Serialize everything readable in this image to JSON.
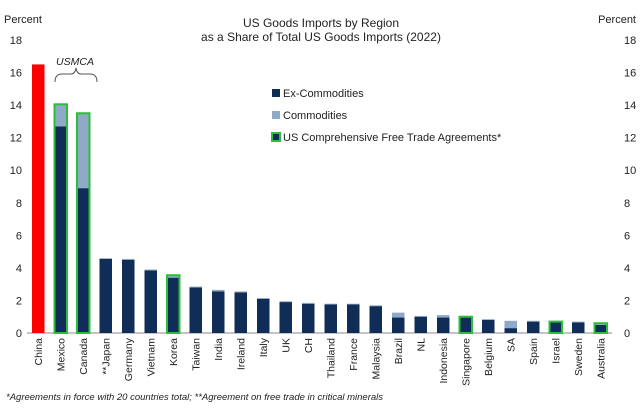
{
  "chart_data": {
    "type": "bar",
    "title": "US Goods Imports by Region",
    "subtitle": "as a Share of Total US Goods Imports (2022)",
    "ylabel_left": "Percent",
    "ylabel_right": "Percent",
    "ylim": [
      0,
      18
    ],
    "yticks": [
      0,
      2,
      4,
      6,
      8,
      10,
      12,
      14,
      16,
      18
    ],
    "grid": false,
    "categories": [
      "China",
      "Mexico",
      "Canada",
      "**Japan",
      "Germany",
      "Vietnam",
      "Korea",
      "Taiwan",
      "India",
      "Ireland",
      "Italy",
      "UK",
      "CH",
      "Thailand",
      "France",
      "Malaysia",
      "Brazil",
      "NL",
      "Indonesia",
      "Singapore",
      "Belgium",
      "SA",
      "Spain",
      "Israel",
      "Sweden",
      "Australia"
    ],
    "series": [
      {
        "name": "Ex-Commodities",
        "values": [
          16.5,
          12.7,
          8.9,
          4.55,
          4.5,
          3.85,
          3.4,
          2.8,
          2.55,
          2.5,
          2.1,
          1.9,
          1.8,
          1.75,
          1.75,
          1.65,
          0.95,
          1.0,
          0.95,
          0.95,
          0.8,
          0.3,
          0.7,
          0.65,
          0.65,
          0.5
        ]
      },
      {
        "name": "Commodities",
        "values": [
          0,
          1.35,
          4.6,
          0.05,
          0.05,
          0.05,
          0.15,
          0.05,
          0.1,
          0.05,
          0.05,
          0.05,
          0.05,
          0.05,
          0.05,
          0.05,
          0.3,
          0.05,
          0.15,
          0.05,
          0.05,
          0.45,
          0.05,
          0.05,
          0.05,
          0.1
        ]
      }
    ],
    "highlight_colors": {
      "china": "#ff0000",
      "ex": "#0f2d57",
      "com": "#8faac7",
      "fta_border": "#2ebd3a"
    },
    "fta_countries": [
      "Mexico",
      "Canada",
      "Korea",
      "Singapore",
      "Israel",
      "Australia"
    ],
    "annotation": "USMCA",
    "legend": [
      {
        "label": "Ex-Commodities",
        "swatch": "ex"
      },
      {
        "label": "Commodities",
        "swatch": "com"
      },
      {
        "label": "US Comprehensive Free Trade Agreements*",
        "swatch": "fta"
      }
    ],
    "legend_position": "center-right"
  },
  "footnote": "*Agreements in force with 20 countries total; **Agreement on free trade in critical minerals"
}
